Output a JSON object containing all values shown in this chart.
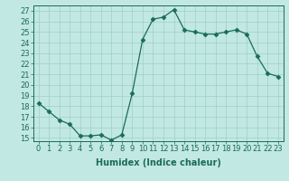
{
  "x": [
    0,
    1,
    2,
    3,
    4,
    5,
    6,
    7,
    8,
    9,
    10,
    11,
    12,
    13,
    14,
    15,
    16,
    17,
    18,
    19,
    20,
    21,
    22,
    23
  ],
  "y": [
    18.3,
    17.5,
    16.7,
    16.3,
    15.2,
    15.2,
    15.3,
    14.8,
    15.3,
    19.2,
    24.3,
    26.2,
    26.4,
    27.1,
    25.2,
    25.0,
    24.8,
    24.8,
    25.0,
    25.2,
    24.8,
    22.7,
    21.1,
    20.8
  ],
  "xlabel": "Humidex (Indice chaleur)",
  "xlim": [
    -0.5,
    23.5
  ],
  "ylim": [
    14.7,
    27.5
  ],
  "yticks": [
    15,
    16,
    17,
    18,
    19,
    20,
    21,
    22,
    23,
    24,
    25,
    26,
    27
  ],
  "xticks": [
    0,
    1,
    2,
    3,
    4,
    5,
    6,
    7,
    8,
    9,
    10,
    11,
    12,
    13,
    14,
    15,
    16,
    17,
    18,
    19,
    20,
    21,
    22,
    23
  ],
  "line_color": "#1a6b5a",
  "marker": "D",
  "marker_size": 2.5,
  "bg_color": "#c2e8e4",
  "grid_color": "#9ecfca",
  "label_fontsize": 7,
  "tick_fontsize": 6
}
